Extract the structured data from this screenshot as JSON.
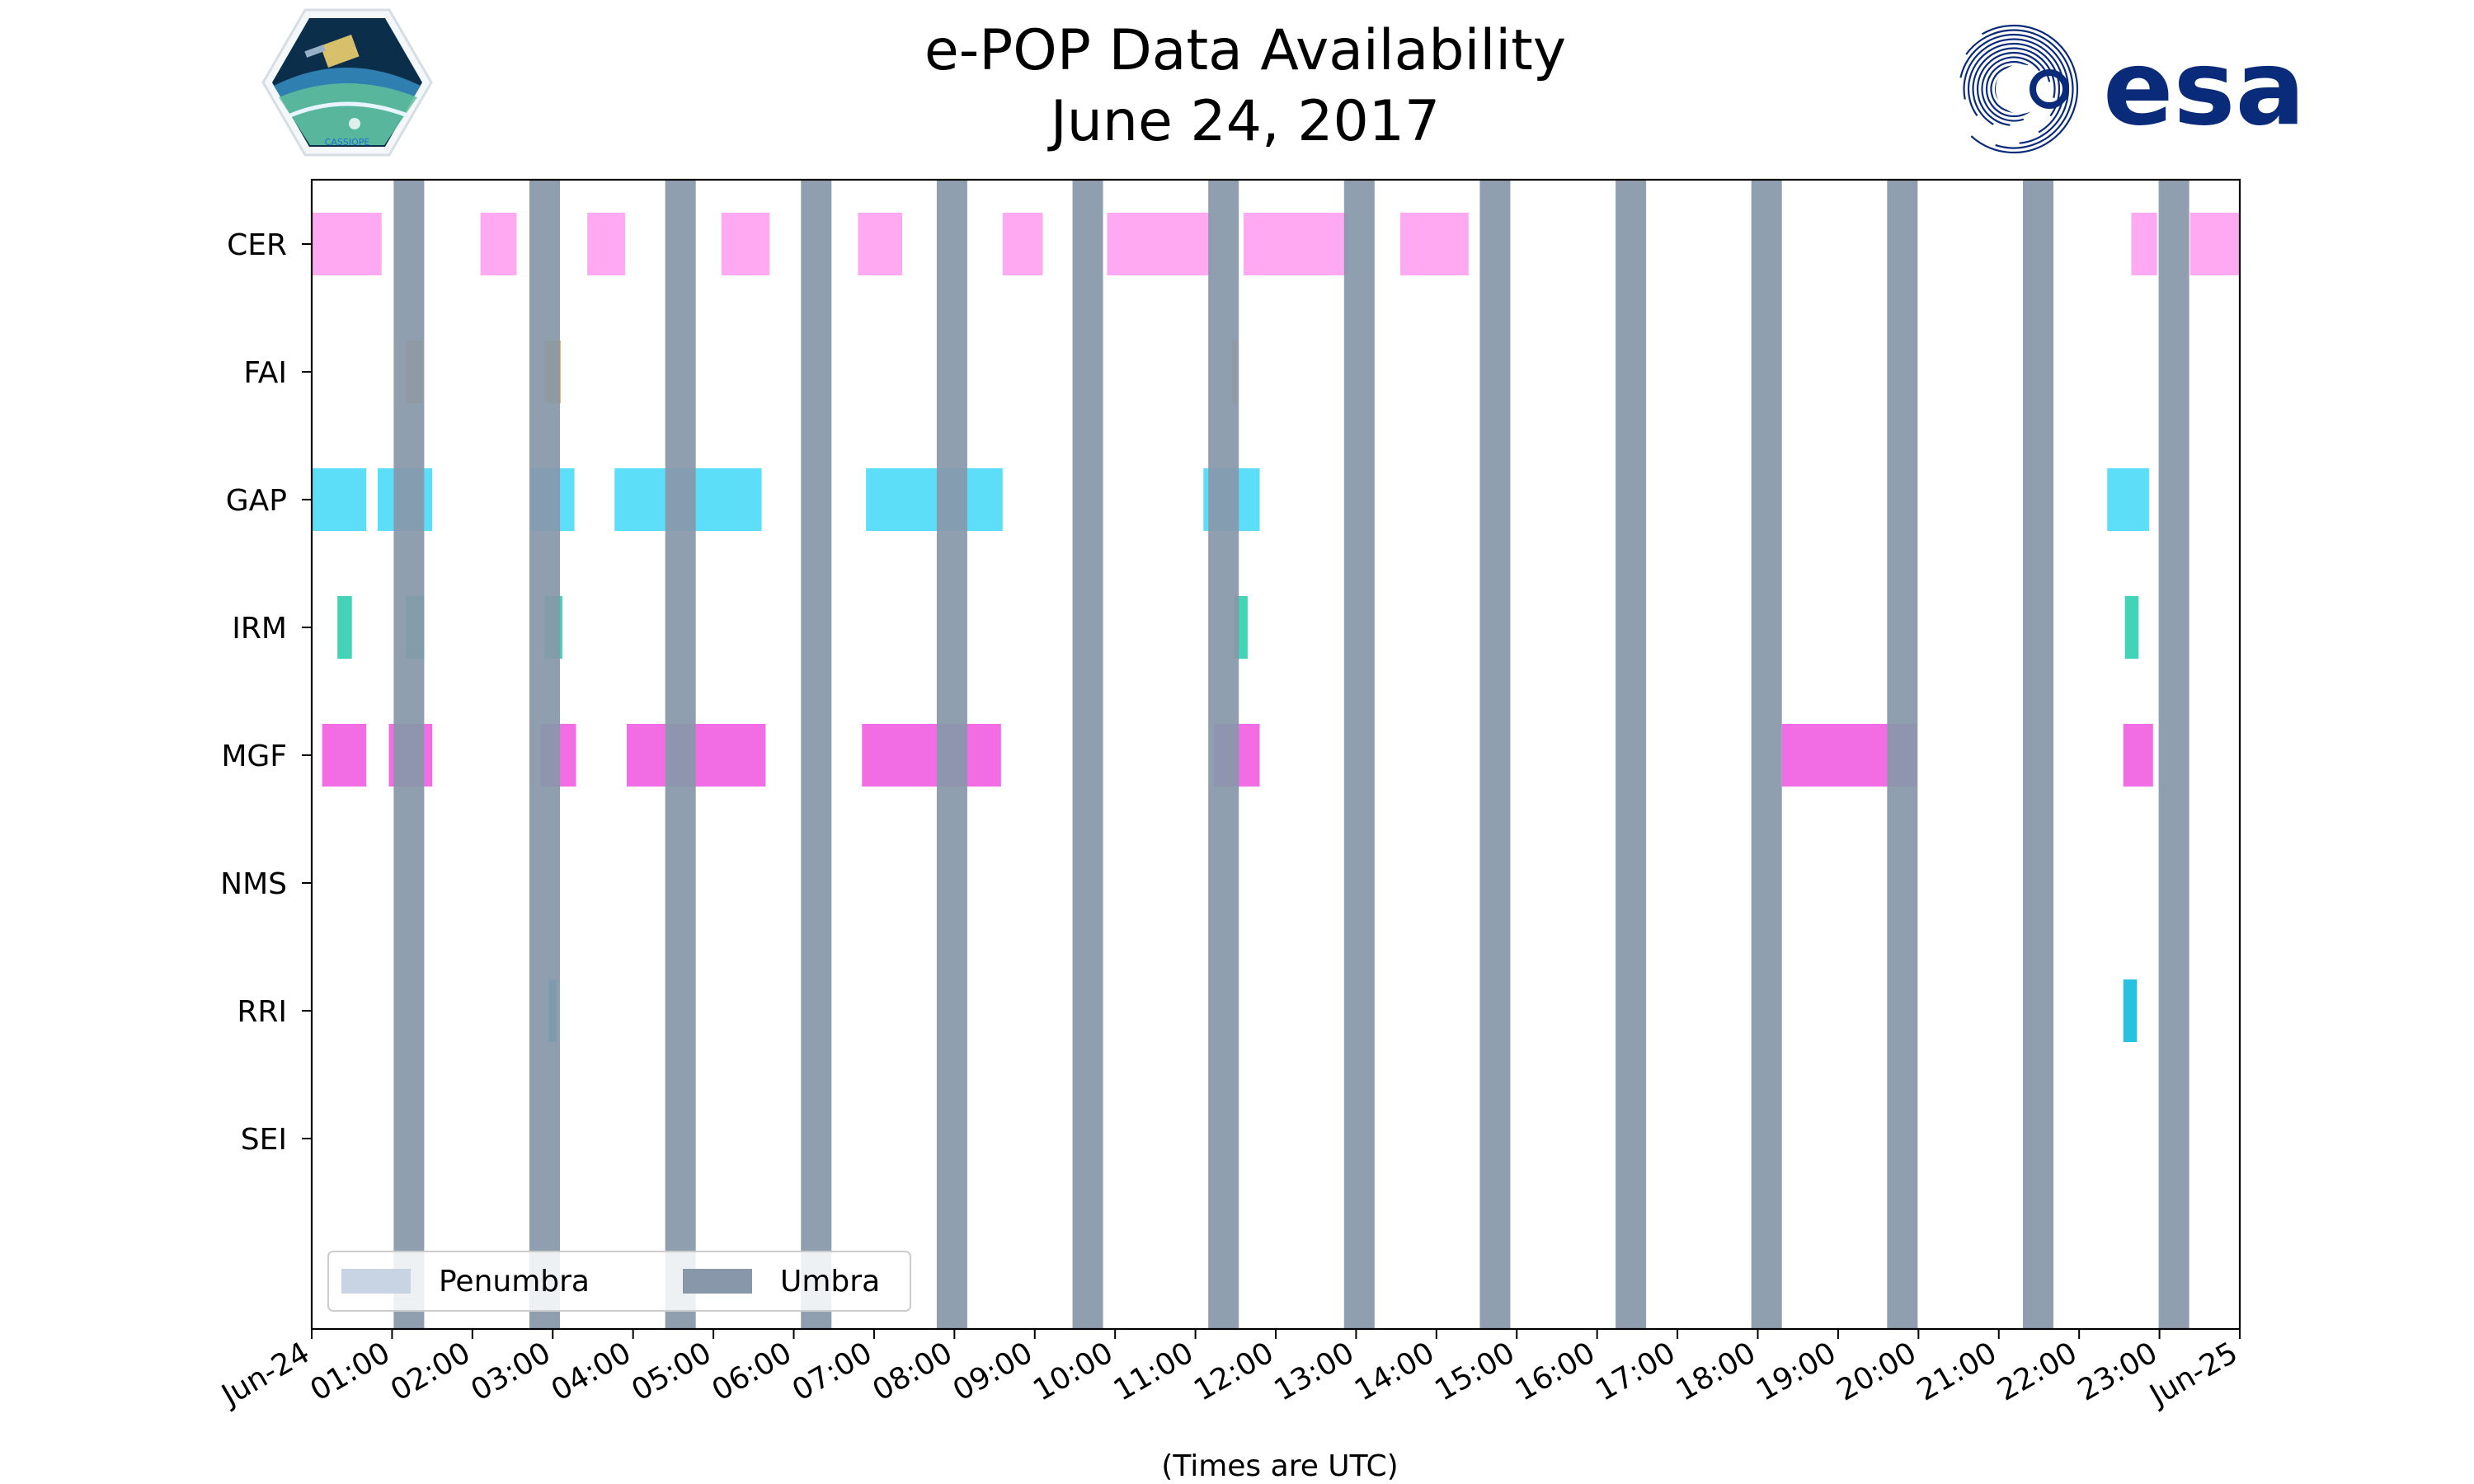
{
  "logos": {
    "cassiope": {
      "name": "cassiope-logo",
      "text": "CASSIOPE"
    },
    "esa": {
      "name": "esa-logo",
      "text": "esa",
      "color": "#0a2a7a"
    }
  },
  "chart_data": {
    "type": "timeline",
    "title": "e-POP Data Availability",
    "subtitle": "June 24, 2017",
    "xlabel": "(Times are UTC)",
    "xlim_hours": [
      0,
      24
    ],
    "tick_labels": [
      "Jun-24",
      "01:00",
      "02:00",
      "03:00",
      "04:00",
      "05:00",
      "06:00",
      "07:00",
      "08:00",
      "09:00",
      "10:00",
      "11:00",
      "12:00",
      "13:00",
      "14:00",
      "15:00",
      "16:00",
      "17:00",
      "18:00",
      "19:00",
      "20:00",
      "21:00",
      "22:00",
      "23:00",
      "Jun-25"
    ],
    "instruments": [
      {
        "name": "CER",
        "color": "#ff88ee",
        "opacity": 0.72,
        "intervals": [
          [
            0.0,
            0.87
          ],
          [
            2.1,
            2.55
          ],
          [
            3.43,
            3.9
          ],
          [
            5.1,
            5.7
          ],
          [
            6.8,
            7.35
          ],
          [
            8.6,
            9.1
          ],
          [
            9.9,
            11.2
          ],
          [
            11.6,
            12.9
          ],
          [
            13.55,
            14.4
          ],
          [
            22.65,
            22.97
          ],
          [
            23.38,
            24.0
          ]
        ]
      },
      {
        "name": "FAI",
        "color": "#e8a534",
        "opacity": 0.8,
        "intervals": [
          [
            1.17,
            1.38
          ],
          [
            2.9,
            3.1
          ],
          [
            11.45,
            11.52
          ]
        ]
      },
      {
        "name": "GAP",
        "color": "#33d4f6",
        "opacity": 0.8,
        "intervals": [
          [
            0.0,
            0.68
          ],
          [
            0.82,
            1.5
          ],
          [
            2.72,
            3.27
          ],
          [
            3.77,
            5.6
          ],
          [
            6.9,
            8.6
          ],
          [
            11.1,
            11.8
          ],
          [
            22.35,
            22.87
          ]
        ]
      },
      {
        "name": "IRM",
        "color": "#22ccaa",
        "opacity": 0.85,
        "intervals": [
          [
            0.32,
            0.5
          ],
          [
            1.17,
            1.4
          ],
          [
            2.9,
            3.12
          ],
          [
            11.48,
            11.65
          ],
          [
            22.57,
            22.74
          ]
        ]
      },
      {
        "name": "MGF",
        "color": "#ee44dd",
        "opacity": 0.78,
        "intervals": [
          [
            0.13,
            0.68
          ],
          [
            0.96,
            1.5
          ],
          [
            2.85,
            3.29
          ],
          [
            3.92,
            5.65
          ],
          [
            6.85,
            8.58
          ],
          [
            11.23,
            11.8
          ],
          [
            18.3,
            19.98
          ],
          [
            22.55,
            22.92
          ]
        ]
      },
      {
        "name": "NMS",
        "color": "#3399cc",
        "opacity": 0.85,
        "intervals": []
      },
      {
        "name": "RRI",
        "color": "#11bbdd",
        "opacity": 0.9,
        "intervals": [
          [
            2.95,
            3.05
          ],
          [
            22.55,
            22.72
          ]
        ]
      },
      {
        "name": "SEI",
        "color": "#999999",
        "opacity": 0.85,
        "intervals": []
      }
    ],
    "umbra": {
      "label": "Umbra",
      "color": "#8898aa",
      "intervals": [
        [
          1.02,
          1.4
        ],
        [
          2.71,
          3.09
        ],
        [
          4.4,
          4.78
        ],
        [
          6.09,
          6.47
        ],
        [
          7.78,
          8.16
        ],
        [
          9.47,
          9.85
        ],
        [
          11.16,
          11.54
        ],
        [
          12.85,
          13.23
        ],
        [
          14.54,
          14.92
        ],
        [
          16.23,
          16.61
        ],
        [
          17.92,
          18.3
        ],
        [
          19.61,
          19.99
        ],
        [
          21.3,
          21.68
        ],
        [
          22.99,
          23.37
        ]
      ]
    },
    "penumbra": {
      "label": "Penumbra",
      "color": "#c8d4e4",
      "intervals": []
    },
    "legend_position": "lower-left"
  }
}
